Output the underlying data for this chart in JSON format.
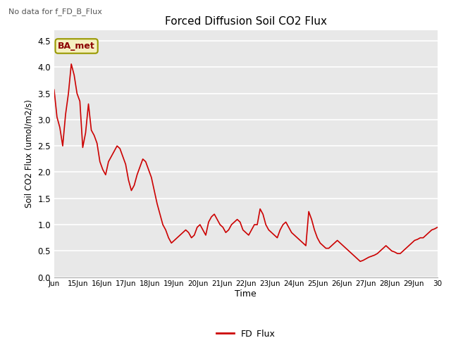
{
  "title": "Forced Diffusion Soil CO2 Flux",
  "ylabel": "Soil CO2 Flux (umol/m2/s)",
  "xlabel": "Time",
  "no_data_label": "No data for f_FD_B_Flux",
  "legend_label": "FD_Flux",
  "ba_met_label": "BA_met",
  "line_color": "#cc0000",
  "ylim": [
    0.0,
    4.7
  ],
  "yticks": [
    0.0,
    0.5,
    1.0,
    1.5,
    2.0,
    2.5,
    3.0,
    3.5,
    4.0,
    4.5
  ],
  "fig_bg_color": "#ffffff",
  "plot_bg_color": "#e8e8e8",
  "x_tick_labels": [
    "Jun",
    "15Jun",
    "16Jun",
    "17Jun",
    "18Jun",
    "19Jun",
    "20Jun",
    "21Jun",
    "22Jun",
    "23Jun",
    "24Jun",
    "25Jun",
    "26Jun",
    "27Jun",
    "28Jun",
    "29Jun",
    "30"
  ],
  "series": [
    3.57,
    3.05,
    2.85,
    2.5,
    3.1,
    3.5,
    4.06,
    3.85,
    3.5,
    3.35,
    2.47,
    2.75,
    3.3,
    2.8,
    2.7,
    2.55,
    2.2,
    2.05,
    1.95,
    2.2,
    2.3,
    2.4,
    2.5,
    2.45,
    2.3,
    2.15,
    1.85,
    1.65,
    1.75,
    1.95,
    2.1,
    2.25,
    2.2,
    2.05,
    1.9,
    1.65,
    1.4,
    1.2,
    1.0,
    0.9,
    0.75,
    0.65,
    0.7,
    0.75,
    0.8,
    0.85,
    0.9,
    0.85,
    0.75,
    0.8,
    0.95,
    1.0,
    0.9,
    0.8,
    1.05,
    1.15,
    1.2,
    1.1,
    1.0,
    0.95,
    0.85,
    0.9,
    1.0,
    1.05,
    1.1,
    1.05,
    0.9,
    0.85,
    0.8,
    0.9,
    1.0,
    1.0,
    1.3,
    1.2,
    1.0,
    0.9,
    0.85,
    0.8,
    0.75,
    0.9,
    1.0,
    1.05,
    0.95,
    0.85,
    0.8,
    0.75,
    0.7,
    0.65,
    0.6,
    1.25,
    1.1,
    0.9,
    0.75,
    0.65,
    0.6,
    0.55,
    0.55,
    0.6,
    0.65,
    0.7,
    0.65,
    0.6,
    0.55,
    0.5,
    0.45,
    0.4,
    0.35,
    0.3,
    0.32,
    0.35,
    0.38,
    0.4,
    0.42,
    0.45,
    0.5,
    0.55,
    0.6,
    0.55,
    0.5,
    0.48,
    0.45,
    0.45,
    0.5,
    0.55,
    0.6,
    0.65,
    0.7,
    0.72,
    0.75,
    0.75,
    0.8,
    0.85,
    0.9,
    0.92,
    0.95
  ]
}
